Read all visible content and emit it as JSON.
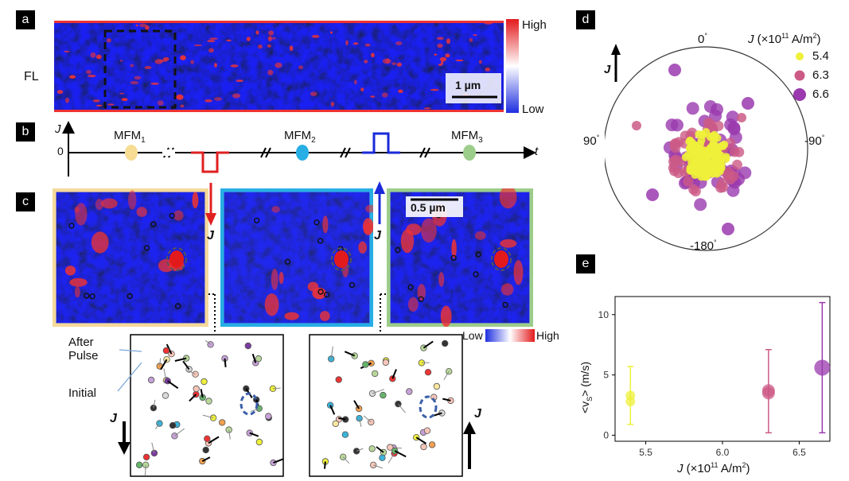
{
  "panels": {
    "a": {
      "tag": "a",
      "row_label": "FL",
      "colorbar_high": "High",
      "colorbar_low": "Low",
      "scalebar": "1 µm"
    },
    "b": {
      "tag": "b",
      "y_axis": "J",
      "zero": "0",
      "t_axis": "t",
      "mfm1": "MFM",
      "mfm1_sub": "1",
      "mfm2": "MFM",
      "mfm2_sub": "2",
      "mfm3": "MFM",
      "mfm3_sub": "3"
    },
    "c": {
      "tag": "c",
      "scalebar": "0.5 µm",
      "j_label": "J",
      "colorbar_low": "Low",
      "colorbar_high": "High",
      "after_pulse": "After\nPulse",
      "after_line1": "After",
      "after_line2": "Pulse",
      "initial": "Initial"
    },
    "d": {
      "tag": "d",
      "angle_top": "0",
      "angle_left": "90",
      "angle_right": "-90",
      "angle_bottom": "-180",
      "j_label": "J",
      "legend_title": "(×10",
      "legend_title_exp": "11",
      "legend_title_unit": "A/m",
      "legend_title_unit_exp": "2",
      "legend_items": [
        "5.4",
        "6.3",
        "6.6"
      ]
    },
    "e": {
      "tag": "e",
      "ylabel": "<v",
      "ylabel_sub": "S",
      "ylabel_tail": "> (m/s)",
      "xlabel": "(×10",
      "xlabel_exp": "11",
      "xlabel_unit": "A/m",
      "xlabel_unit_exp": "2",
      "xlabel_j": "J"
    }
  },
  "colors": {
    "yellow": "#eef03a",
    "pink": "#cc5a86",
    "purple": "#9a3aae",
    "mfm1": "#f7dc94",
    "mfm2": "#27aee4",
    "mfm3": "#9ccd8a",
    "pulse_neg": "#e02020",
    "pulse_pos": "#1a2ad8"
  },
  "chart_data": {
    "type": "scatter",
    "xlabel": "J (×10^11 A/m^2)",
    "ylabel": "<vS> (m/s)",
    "xlim": [
      5.3,
      6.7
    ],
    "ylim": [
      -0.5,
      11.5
    ],
    "x_ticks": [
      "5.5",
      "6.0",
      "6.5"
    ],
    "y_ticks": [
      "0",
      "5",
      "10"
    ],
    "grid": false,
    "series": [
      {
        "name": "5.4",
        "x": 5.4,
        "points": [
          3.3,
          2.8
        ],
        "mean": 3.0,
        "err_low": 0.9,
        "err_high": 5.7
      },
      {
        "name": "6.3",
        "x": 6.3,
        "points": [
          3.5,
          3.7
        ],
        "mean": 3.6,
        "err_low": 0.2,
        "err_high": 7.1
      },
      {
        "name": "6.6",
        "x": 6.65,
        "points": [
          5.6
        ],
        "mean": 5.6,
        "err_low": 0.2,
        "err_high": 11.0
      }
    ]
  }
}
